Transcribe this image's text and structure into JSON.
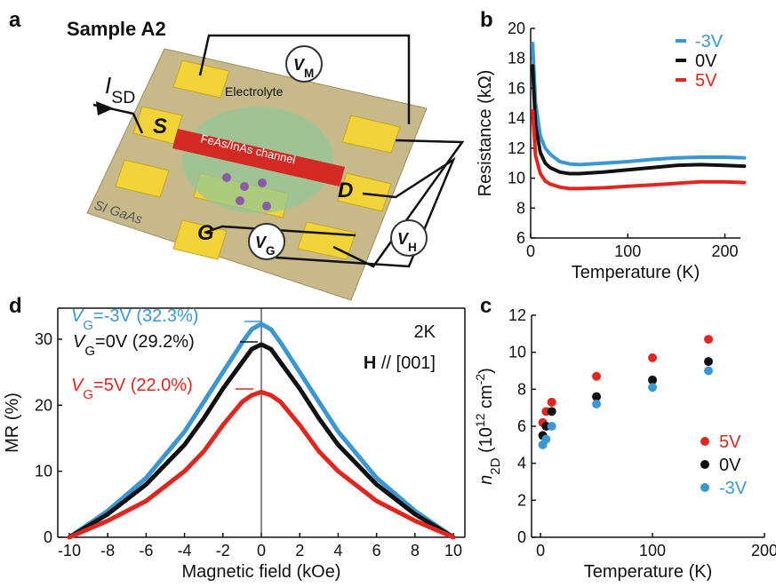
{
  "panel_a": {
    "label": "a",
    "title": "Sample A2",
    "source_current": [
      {
        "text": "I",
        "style": "i"
      },
      {
        "text": "SD",
        "style": "sub"
      }
    ],
    "vm": [
      {
        "text": "V",
        "style": "i"
      },
      {
        "text": "M",
        "style": "sub"
      }
    ],
    "electrolyte": "Electrolyte",
    "source": "S",
    "channel": "FeAs/InAs channel",
    "drain": "D",
    "substrate": "SI GaAs",
    "gate": "G",
    "vg": [
      {
        "text": "V",
        "style": "i"
      },
      {
        "text": "G",
        "style": "sub"
      }
    ],
    "vh": [
      {
        "text": "V",
        "style": "i"
      },
      {
        "text": "H",
        "style": "sub"
      }
    ]
  },
  "chart_data": [
    {
      "type": "line",
      "label": "b",
      "frame": "axes",
      "legend": "top-right",
      "xlabel": "Temperature (K)",
      "ylabel": [
        {
          "text": "Resistance (kΩ)",
          "style": "n"
        }
      ],
      "x": [
        2,
        5,
        10,
        15,
        20,
        30,
        40,
        50,
        75,
        100,
        125,
        150,
        175,
        200,
        220
      ],
      "xlim": [
        0,
        216
      ],
      "xticks": [
        0,
        100,
        200
      ],
      "ylim": [
        6,
        20
      ],
      "yticks": [
        6,
        8,
        10,
        12,
        14,
        16,
        18,
        20
      ],
      "series": [
        {
          "name": "-3V",
          "color": "#3a97d3",
          "values": [
            19,
            15,
            12.8,
            12,
            11.6,
            11.1,
            10.95,
            10.9,
            11,
            11.1,
            11.25,
            11.35,
            11.4,
            11.4,
            11.35
          ]
        },
        {
          "name": "0V",
          "color": "#111111",
          "values": [
            17.5,
            13.5,
            11.7,
            11,
            10.7,
            10.4,
            10.3,
            10.3,
            10.4,
            10.55,
            10.7,
            10.85,
            10.9,
            10.85,
            10.8
          ]
        },
        {
          "name": "5V",
          "color": "#e0261f",
          "values": [
            14.5,
            11.5,
            10.3,
            9.8,
            9.6,
            9.4,
            9.3,
            9.3,
            9.35,
            9.45,
            9.55,
            9.65,
            9.75,
            9.75,
            9.7
          ]
        }
      ]
    },
    {
      "type": "scatter",
      "label": "c",
      "frame": "axes",
      "legend": "bottom-right",
      "xlabel": "Temperature (K)",
      "ylabel": [
        {
          "text": "n",
          "style": "i"
        },
        {
          "text": "2D",
          "style": "sub"
        },
        {
          "text": " (10",
          "style": "n"
        },
        {
          "text": "12",
          "style": "sup"
        },
        {
          "text": " cm",
          "style": "n"
        },
        {
          "text": "-2",
          "style": "sup"
        },
        {
          "text": ")",
          "style": "n"
        }
      ],
      "x": [
        2,
        5,
        10,
        50,
        100,
        150
      ],
      "xlim": [
        -8,
        200
      ],
      "xticks": [
        0,
        100,
        200
      ],
      "ylim": [
        0,
        12
      ],
      "yticks": [
        0,
        2,
        4,
        6,
        8,
        10,
        12
      ],
      "series": [
        {
          "name": "5V",
          "color": "#e0261f",
          "values": [
            6.2,
            6.8,
            7.3,
            8.7,
            9.7,
            10.7
          ]
        },
        {
          "name": "0V",
          "color": "#111111",
          "values": [
            5.5,
            6.0,
            6.8,
            7.6,
            8.5,
            9.5
          ]
        },
        {
          "name": "-3V",
          "color": "#3a97d3",
          "values": [
            5.0,
            5.3,
            6.0,
            7.2,
            8.1,
            9.0
          ]
        }
      ]
    },
    {
      "type": "line",
      "label": "d",
      "frame": "box",
      "xlabel": "Magnetic field (kOe)",
      "ylabel": [
        {
          "text": "MR (%)",
          "style": "n"
        }
      ],
      "x": [
        -10,
        -8,
        -6,
        -4,
        -3,
        -2,
        -1,
        -0.5,
        0,
        0.5,
        1,
        2,
        3,
        4,
        6,
        8,
        10
      ],
      "xlim": [
        -10.6,
        10.6
      ],
      "xticks": [
        -10,
        -8,
        -6,
        -4,
        -2,
        0,
        2,
        4,
        6,
        8,
        10
      ],
      "ylim": [
        0,
        34.7
      ],
      "yticks": [
        0,
        10,
        20,
        30
      ],
      "reference_line_x": 0,
      "series": [
        {
          "name": "-3V",
          "color": "#3a97d3",
          "values": [
            0,
            4,
            9,
            16,
            20.5,
            25,
            29.5,
            31.5,
            32.3,
            31.5,
            29.5,
            25,
            20.5,
            16,
            9,
            4,
            0
          ]
        },
        {
          "name": "0V",
          "color": "#111111",
          "values": [
            0,
            3.5,
            8,
            14,
            18,
            22.5,
            26.5,
            28.5,
            29.2,
            28.5,
            26.5,
            22.5,
            18,
            14,
            8,
            3.5,
            0
          ]
        },
        {
          "name": "5V",
          "color": "#e0261f",
          "values": [
            0,
            2.5,
            5.5,
            10,
            13,
            17,
            20.5,
            21.5,
            22,
            21.5,
            20.5,
            17,
            13,
            10,
            5.5,
            2.5,
            0
          ]
        }
      ],
      "annotations": [
        {
          "color": "#3a97d3",
          "segments": [
            {
              "text": "V",
              "style": "i"
            },
            {
              "text": "G",
              "style": "sub"
            },
            {
              "text": "=-3V (32.3%)",
              "style": "n"
            }
          ]
        },
        {
          "color": "#111111",
          "segments": [
            {
              "text": "V",
              "style": "i"
            },
            {
              "text": "G",
              "style": "sub"
            },
            {
              "text": "=0V (29.2%)",
              "style": "n"
            }
          ]
        },
        {
          "color": "#e0261f",
          "segments": [
            {
              "text": "V",
              "style": "i"
            },
            {
              "text": "G",
              "style": "sub"
            },
            {
              "text": "=5V (22.0%)",
              "style": "n"
            }
          ]
        },
        {
          "color": "#111111",
          "segments": [
            {
              "text": "2K",
              "style": "n"
            }
          ]
        },
        {
          "color": "#111111",
          "segments": [
            {
              "text": "H",
              "style": "b"
            },
            {
              "text": " // [001]",
              "style": "n"
            }
          ]
        }
      ]
    }
  ]
}
